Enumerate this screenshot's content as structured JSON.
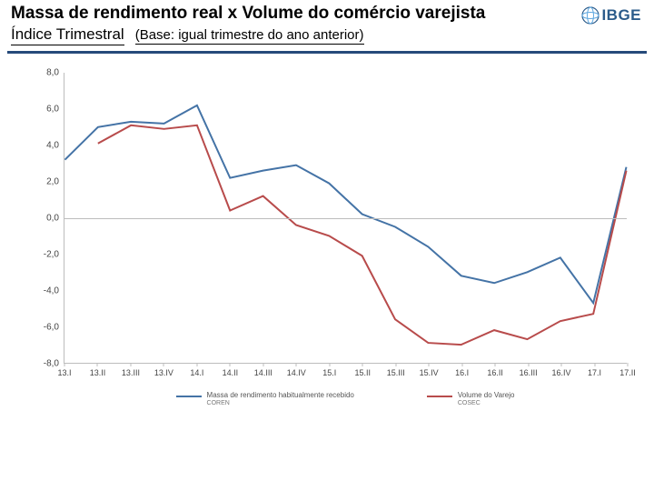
{
  "header": {
    "title": "Massa de rendimento real x Volume do comércio varejista",
    "subtitle": "Índice Trimestral",
    "base_note": "(Base: igual trimestre do ano anterior)"
  },
  "logo": {
    "text": "IBGE",
    "mark_color_light": "#5fa8e0",
    "mark_color_dark": "#2b5b8a",
    "text_color": "#2b5b8a"
  },
  "divider_color": "#264a7a",
  "chart": {
    "type": "line",
    "background_color": "#ffffff",
    "axis_color": "#bdbdbd",
    "tick_font_size": 10,
    "x_tick_font_size": 9,
    "ylim": [
      -8.0,
      8.0
    ],
    "ytick_step": 2.0,
    "yticks": [
      "8,0",
      "6,0",
      "4,0",
      "2,0",
      "0,0",
      "-2,0",
      "-4,0",
      "-6,0",
      "-8,0"
    ],
    "ytick_values": [
      8.0,
      6.0,
      4.0,
      2.0,
      0.0,
      -2.0,
      -4.0,
      -6.0,
      -8.0
    ],
    "categories": [
      "13.I",
      "13.II",
      "13.III",
      "13.IV",
      "14.I",
      "14.II",
      "14.III",
      "14.IV",
      "15.I",
      "15.II",
      "15.III",
      "15.IV",
      "16.I",
      "16.II",
      "16.III",
      "16.IV",
      "17.I",
      "17.II"
    ],
    "series": [
      {
        "id": "massa",
        "name": "Massa de rendimento habitualmente recebido",
        "source": "COREN",
        "color": "#4473a6",
        "line_width": 2,
        "values": [
          3.2,
          5.0,
          5.3,
          5.2,
          6.2,
          2.2,
          2.6,
          2.9,
          1.9,
          0.2,
          -0.5,
          -1.6,
          -3.2,
          -3.6,
          -3.0,
          -2.2,
          -4.7,
          2.8
        ]
      },
      {
        "id": "varejo",
        "name": "Volume do Varejo",
        "source": "COSEC",
        "color": "#b84b4b",
        "line_width": 2,
        "values": [
          null,
          4.1,
          5.1,
          4.9,
          5.1,
          0.4,
          1.2,
          -0.4,
          -1.0,
          -2.1,
          -5.6,
          -6.9,
          -7.0,
          -6.2,
          -6.7,
          -5.7,
          -5.3,
          2.6
        ]
      }
    ],
    "legend": {
      "position": "bottom-center",
      "swatch_width": 28,
      "font_size": 8
    }
  }
}
